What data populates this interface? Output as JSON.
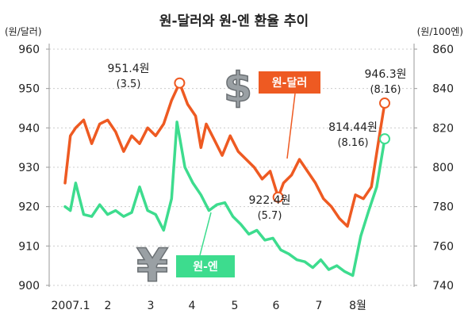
{
  "chart_data": {
    "type": "line",
    "title": "원-달러와 원-엔 환율 추이",
    "ylabel_left": "(원/달러)",
    "ylabel_right": "(원/100엔)",
    "ylim_left": [
      900,
      960
    ],
    "ylim_right": [
      740,
      860
    ],
    "yticks_left": [
      900,
      910,
      920,
      930,
      940,
      950,
      960
    ],
    "yticks_right": [
      740,
      760,
      780,
      800,
      820,
      840,
      860
    ],
    "xlim": [
      2007.0,
      2007.6
    ],
    "categories": [
      "2007.1",
      "2",
      "3",
      "4",
      "5",
      "6",
      "7",
      "8월"
    ],
    "grid": "horizontal-dotted",
    "colors": {
      "won_dollar": "#ee5a22",
      "won_yen": "#3ddc8e",
      "axis_text": "#222222",
      "gridline": "#cccccc"
    },
    "series": [
      {
        "name": "원-달러",
        "axis": "left",
        "icon": "dollar-sign-icon",
        "x": [
          2007.0,
          2007.01,
          2007.02,
          2007.035,
          2007.05,
          2007.065,
          2007.08,
          2007.095,
          2007.11,
          2007.125,
          2007.14,
          2007.155,
          2007.17,
          2007.185,
          2007.2,
          2007.215,
          2007.23,
          2007.245,
          2007.255,
          2007.265,
          2007.28,
          2007.295,
          2007.31,
          2007.325,
          2007.34,
          2007.355,
          2007.37,
          2007.385,
          2007.4,
          2007.41,
          2007.425,
          2007.44,
          2007.455,
          2007.47,
          2007.485,
          2007.5,
          2007.515,
          2007.53,
          2007.545,
          2007.56,
          2007.575,
          2007.59,
          2007.6
        ],
        "y": [
          926,
          938,
          940,
          942,
          936,
          941,
          942,
          939,
          934,
          938,
          936,
          940,
          938,
          941,
          947,
          951.4,
          946,
          943,
          935,
          941,
          937,
          933,
          938,
          934,
          932,
          930,
          927,
          929,
          922.4,
          926,
          928,
          932,
          929,
          926,
          922,
          920,
          917,
          915,
          923,
          922,
          925,
          938,
          946.3
        ],
        "annotations": [
          {
            "label": "951.4원",
            "date": "(3.5)"
          },
          {
            "label": "922.4원",
            "date": "(5.7)"
          },
          {
            "label": "946.3원",
            "date": "(8.16)"
          }
        ]
      },
      {
        "name": "원-엔",
        "axis": "right",
        "icon": "yen-sign-icon",
        "x": [
          2007.0,
          2007.01,
          2007.02,
          2007.035,
          2007.05,
          2007.065,
          2007.08,
          2007.095,
          2007.11,
          2007.125,
          2007.14,
          2007.155,
          2007.17,
          2007.185,
          2007.2,
          2007.21,
          2007.225,
          2007.24,
          2007.255,
          2007.27,
          2007.285,
          2007.3,
          2007.315,
          2007.33,
          2007.345,
          2007.36,
          2007.375,
          2007.39,
          2007.405,
          2007.42,
          2007.435,
          2007.45,
          2007.465,
          2007.48,
          2007.495,
          2007.51,
          2007.525,
          2007.54,
          2007.555,
          2007.57,
          2007.585,
          2007.6
        ],
        "y": [
          780,
          778,
          792,
          776,
          775,
          781,
          776,
          778,
          775,
          777,
          790,
          778,
          776,
          768,
          784,
          823,
          800,
          792,
          786,
          778,
          781,
          782,
          775,
          771,
          766,
          768,
          763,
          764,
          758,
          756,
          753,
          752,
          749,
          753,
          748,
          750,
          747,
          745,
          765,
          778,
          790,
          814.44
        ],
        "annotations": [
          {
            "label": "814.44원",
            "date": "(8.16)"
          }
        ]
      }
    ]
  }
}
